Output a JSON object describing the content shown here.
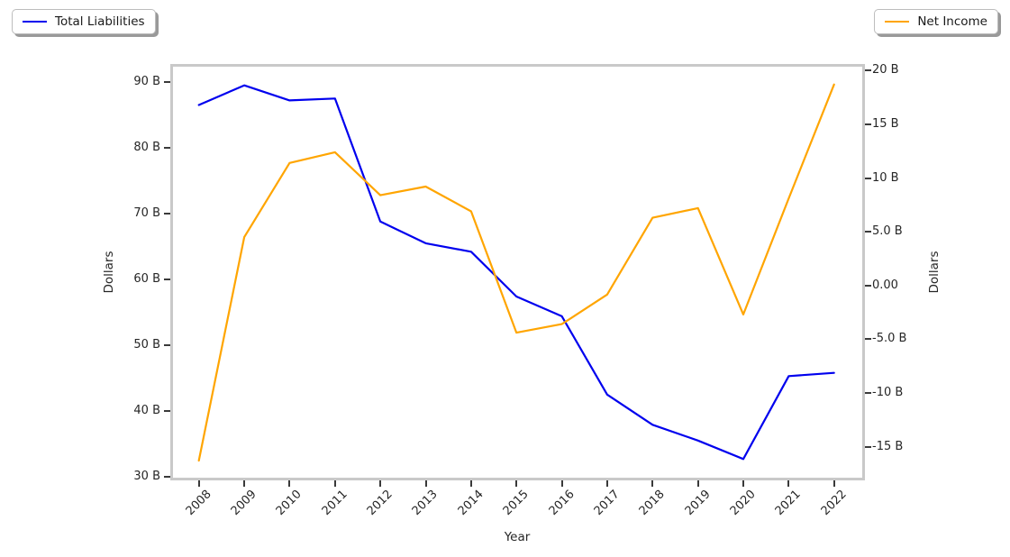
{
  "chart_data": {
    "type": "line",
    "title": "",
    "xlabel": "Year",
    "ylabel_left": "Dollars",
    "ylabel_right": "Dollars",
    "units": "billions of dollars",
    "grid": false,
    "x": [
      2008,
      2009,
      2010,
      2011,
      2012,
      2013,
      2014,
      2015,
      2016,
      2017,
      2018,
      2019,
      2020,
      2021,
      2022
    ],
    "series": [
      {
        "name": "Total Liabilities",
        "axis": "left",
        "color": "#0000ee",
        "legend_position": "outside-top-left",
        "values": [
          86.5,
          89.5,
          87.2,
          87.5,
          68.8,
          65.5,
          64.2,
          57.4,
          54.4,
          42.5,
          37.9,
          35.5,
          32.7,
          45.3,
          45.8
        ]
      },
      {
        "name": "Net Income",
        "axis": "right",
        "color": "#ffa500",
        "legend_position": "outside-top-right",
        "values": [
          -16.3,
          4.5,
          11.4,
          12.4,
          8.4,
          9.2,
          6.9,
          -4.4,
          -3.6,
          -0.85,
          6.3,
          7.2,
          -2.7,
          8.1,
          18.7
        ]
      }
    ],
    "ylim_left": [
      29.5,
      93.0
    ],
    "ylim_right": [
      -18.2,
      20.7
    ],
    "yticks_left": [
      {
        "value": 90,
        "label": "90 B"
      },
      {
        "value": 80,
        "label": "80 B"
      },
      {
        "value": 70,
        "label": "70 B"
      },
      {
        "value": 60,
        "label": "60 B"
      },
      {
        "value": 50,
        "label": "50 B"
      },
      {
        "value": 40,
        "label": "40 B"
      },
      {
        "value": 30,
        "label": "30 B"
      }
    ],
    "yticks_right": [
      {
        "value": 20,
        "label": "20 B"
      },
      {
        "value": 15,
        "label": "15 B"
      },
      {
        "value": 10,
        "label": "10 B"
      },
      {
        "value": 5,
        "label": "5.0 B"
      },
      {
        "value": 0,
        "label": "0.00"
      },
      {
        "value": -5,
        "label": "-5.0 B"
      },
      {
        "value": -10,
        "label": "-10 B"
      },
      {
        "value": -15,
        "label": "-15 B"
      }
    ]
  }
}
